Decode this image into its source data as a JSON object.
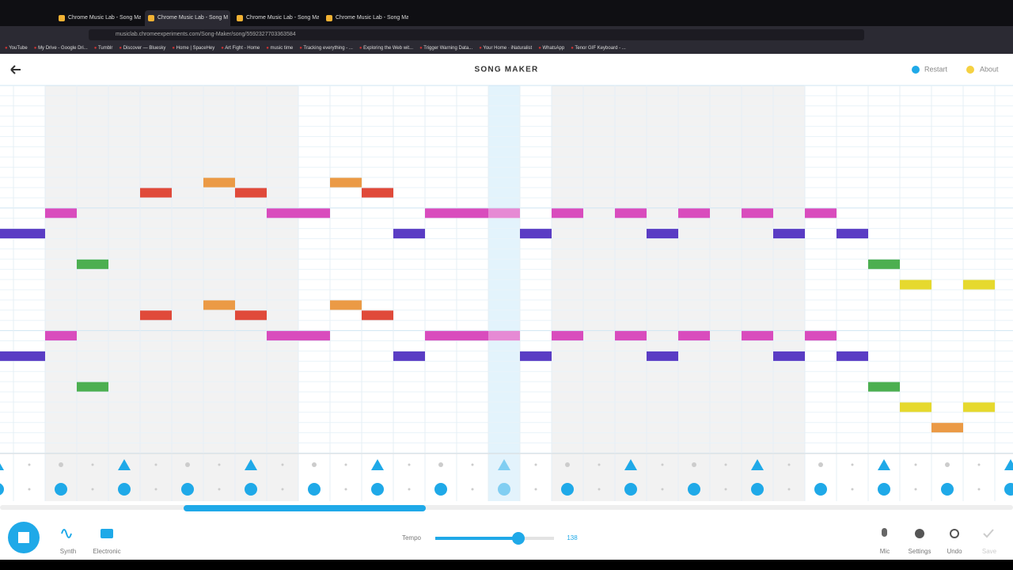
{
  "browser": {
    "tabs": [
      "Chrome Music Lab - Song Mak",
      "Chrome Music Lab - Song M",
      "Chrome Music Lab - Song Mak",
      "Chrome Music Lab - Song Mak"
    ],
    "url": "musiclab.chromeexperiments.com/Song-Maker/song/5592327703363584",
    "bookmarks": [
      "YouTube",
      "My Drive - Google Dri...",
      "Tumblr",
      "Discover — Bluesky",
      "Home | SpaceHey",
      "Art Fight - Home",
      "music time",
      "Tracking everything - ...",
      "Exploring the Web wit...",
      "Trigger Warning Data...",
      "Your Home · iNaturalist",
      "WhatsApp",
      "Tenor GIF Keyboard - ..."
    ]
  },
  "app": {
    "title": "SONG MAKER",
    "restart": "Restart",
    "about": "About"
  },
  "controls": {
    "instrument": "Synth",
    "percussion": "Electronic",
    "tempo_label": "Tempo",
    "tempo": "138",
    "mic": "Mic",
    "settings": "Settings",
    "undo": "Undo",
    "save": "Save"
  }
}
